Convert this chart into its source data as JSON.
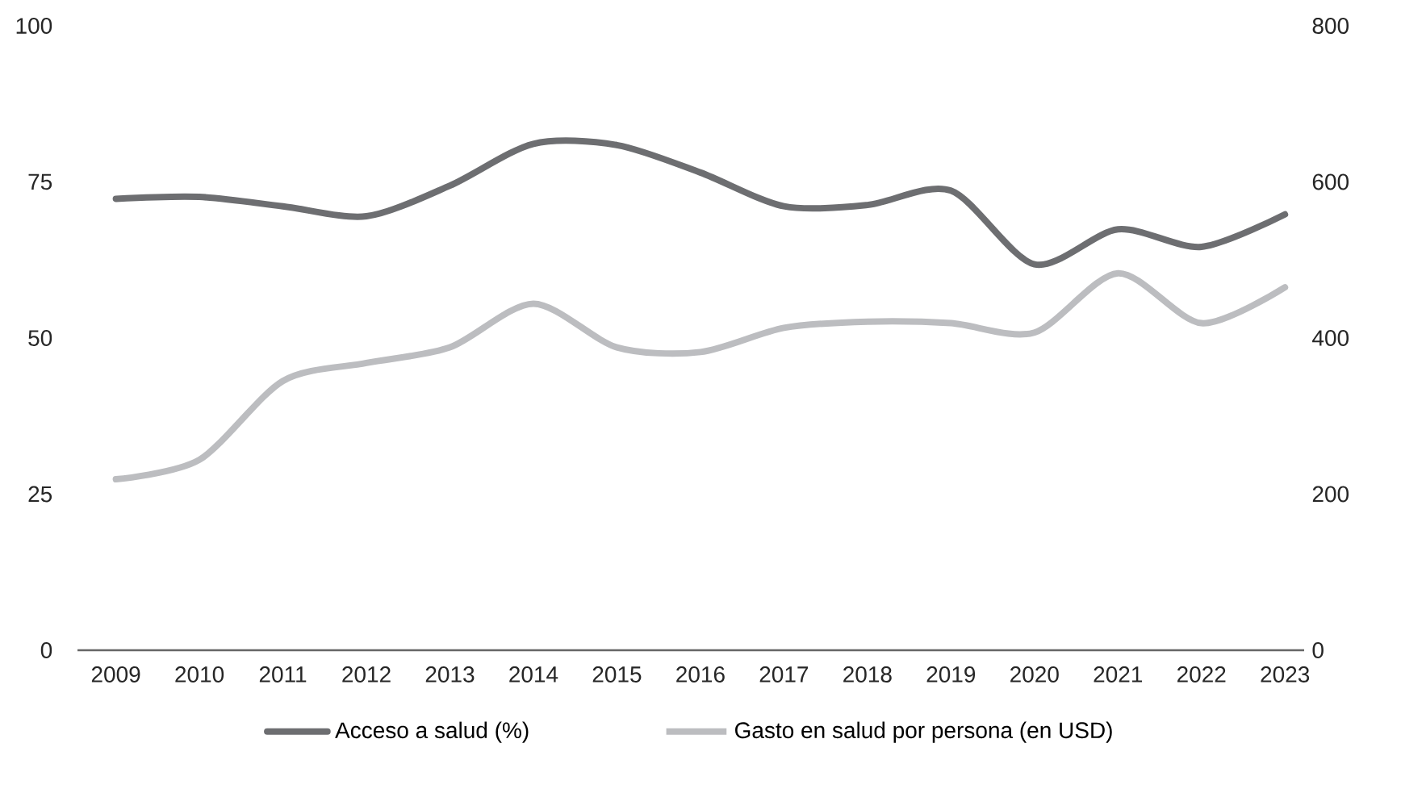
{
  "chart_data": {
    "type": "line",
    "categories": [
      "2009",
      "2010",
      "2011",
      "2012",
      "2013",
      "2014",
      "2015",
      "2016",
      "2017",
      "2018",
      "2019",
      "2020",
      "2021",
      "2022",
      "2023"
    ],
    "series": [
      {
        "name": "Acceso a salud (%)",
        "color": "#6d6e71",
        "values": [
          72.3,
          72.6,
          71.1,
          69.5,
          74.4,
          81.1,
          80.9,
          76.5,
          71.1,
          71.3,
          73.6,
          61.8,
          67.4,
          64.6,
          69.8
        ]
      },
      {
        "name": "Gasto en salud por persona (en USD)",
        "color": "#bcbdc0",
        "axis": "y2",
        "values": [
          219,
          244,
          345,
          368,
          388,
          444,
          388,
          382,
          413,
          421,
          419,
          407,
          483,
          419,
          465
        ]
      }
    ],
    "ylim": [
      0,
      100
    ],
    "yticks": [
      0,
      25,
      50,
      75,
      100
    ],
    "y2lim": [
      0,
      800
    ],
    "y2ticks": [
      0,
      200,
      400,
      600,
      800
    ],
    "grid": false,
    "legend": "bottom",
    "marker": "none",
    "line_style": "solid"
  }
}
